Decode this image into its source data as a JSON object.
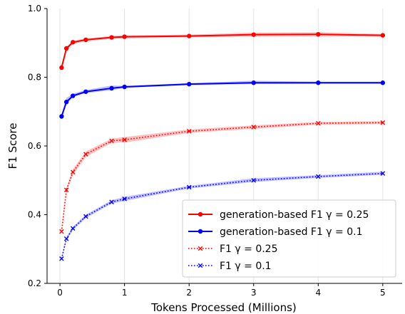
{
  "chart_data": {
    "type": "line",
    "xlabel": "Tokens Processed (Millions)",
    "ylabel": "F1 Score",
    "xlim": [
      -0.2,
      5.3
    ],
    "ylim": [
      0.2,
      1.0
    ],
    "xticks": [
      0,
      1,
      2,
      3,
      4,
      5
    ],
    "yticks": [
      0.2,
      0.4,
      0.6,
      0.8,
      1.0
    ],
    "xtick_labels": [
      "0",
      "1",
      "2",
      "3",
      "4",
      "5"
    ],
    "ytick_labels": [
      "0.2",
      "0.4",
      "0.6",
      "0.8",
      "1.0"
    ],
    "grid": "vertical",
    "legend_position": "lower-right",
    "series": [
      {
        "name": "generation-based F1 γ = 0.25",
        "color": "#ff0000",
        "line_style": "solid",
        "marker": "dot",
        "x": [
          0.025,
          0.1,
          0.2,
          0.4,
          0.8,
          1.0,
          2.0,
          3.0,
          4.0,
          5.0
        ],
        "y": [
          0.828,
          0.884,
          0.902,
          0.909,
          0.916,
          0.918,
          0.92,
          0.924,
          0.925,
          0.922
        ],
        "band_lower": [
          0.824,
          0.879,
          0.897,
          0.905,
          0.912,
          0.914,
          0.916,
          0.918,
          0.919,
          0.918
        ],
        "band_upper": [
          0.832,
          0.889,
          0.906,
          0.913,
          0.92,
          0.922,
          0.924,
          0.93,
          0.931,
          0.926
        ]
      },
      {
        "name": "generation-based F1 γ = 0.1",
        "color": "#0000ff",
        "line_style": "solid",
        "marker": "dot",
        "x": [
          0.025,
          0.1,
          0.2,
          0.4,
          0.8,
          1.0,
          2.0,
          3.0,
          4.0,
          5.0
        ],
        "y": [
          0.686,
          0.728,
          0.746,
          0.758,
          0.768,
          0.772,
          0.78,
          0.784,
          0.784,
          0.784
        ],
        "band_lower": [
          0.68,
          0.722,
          0.742,
          0.754,
          0.762,
          0.769,
          0.777,
          0.78,
          0.781,
          0.781
        ],
        "band_upper": [
          0.692,
          0.74,
          0.752,
          0.763,
          0.776,
          0.775,
          0.783,
          0.79,
          0.787,
          0.787
        ]
      },
      {
        "name": "F1 γ = 0.25",
        "color": "#ff0000",
        "line_style": "dotted",
        "marker": "x",
        "x": [
          0.025,
          0.1,
          0.2,
          0.4,
          0.8,
          1.0,
          2.0,
          3.0,
          4.0,
          5.0
        ],
        "y": [
          0.351,
          0.472,
          0.524,
          0.576,
          0.615,
          0.618,
          0.643,
          0.655,
          0.666,
          0.668
        ],
        "band_lower": [
          0.347,
          0.466,
          0.516,
          0.568,
          0.609,
          0.61,
          0.638,
          0.65,
          0.662,
          0.664
        ],
        "band_upper": [
          0.355,
          0.478,
          0.532,
          0.584,
          0.621,
          0.626,
          0.648,
          0.66,
          0.67,
          0.672
        ]
      },
      {
        "name": "F1 γ = 0.1",
        "color": "#0000ff",
        "line_style": "dotted",
        "marker": "x",
        "x": [
          0.025,
          0.1,
          0.2,
          0.4,
          0.8,
          1.0,
          2.0,
          3.0,
          4.0,
          5.0
        ],
        "y": [
          0.272,
          0.33,
          0.36,
          0.395,
          0.437,
          0.446,
          0.48,
          0.5,
          0.511,
          0.52
        ],
        "band_lower": [
          0.268,
          0.325,
          0.355,
          0.39,
          0.432,
          0.44,
          0.476,
          0.495,
          0.507,
          0.516
        ],
        "band_upper": [
          0.276,
          0.335,
          0.365,
          0.4,
          0.442,
          0.452,
          0.484,
          0.506,
          0.515,
          0.525
        ]
      }
    ]
  }
}
